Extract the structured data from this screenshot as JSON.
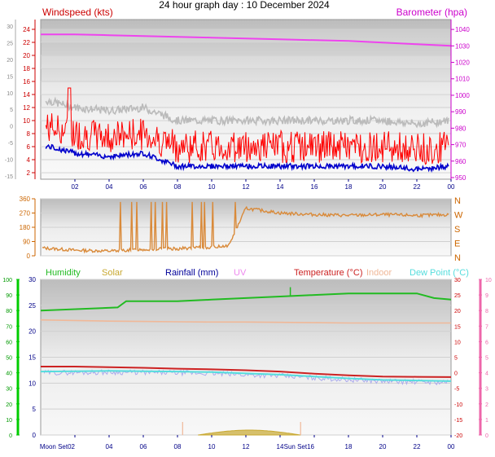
{
  "title": "24 hour graph day : 10 December 2024",
  "colors": {
    "wind": "#ff0000",
    "wind_avg": "#0000cc",
    "gust_band": "#bbbbbb",
    "barometer": "#ee44ee",
    "direction": "#d98a3a",
    "humidity": "#22bb22",
    "solar": "#c8a830",
    "rainfall": "#000099",
    "uv": "#ee88ee",
    "temperature": "#cc2222",
    "indoor": "#f0b898",
    "dew_point": "#55dddd",
    "dew_light": "#aaaaee"
  },
  "chart_data": [
    {
      "type": "line",
      "panel": "wind",
      "ylabel": "Windspeed (kts)",
      "y2label": "Barometer (hpa)",
      "x_ticks": [
        "02",
        "04",
        "06",
        "08",
        "10",
        "12",
        "14",
        "16",
        "18",
        "20",
        "22",
        "00"
      ],
      "y_ticks": [
        "2",
        "4",
        "6",
        "8",
        "10",
        "12",
        "14",
        "16",
        "18",
        "20",
        "22",
        "24"
      ],
      "y_ticks_outer": [
        "-15",
        "-10",
        "-5",
        "0",
        "5",
        "10",
        "15",
        "20",
        "25",
        "30"
      ],
      "y2_ticks": [
        "950",
        "960",
        "970",
        "980",
        "990",
        "1000",
        "1010",
        "1020",
        "1030",
        "1040"
      ],
      "ylim": [
        1,
        25.5
      ],
      "y2lim": [
        949,
        1046
      ],
      "series": [
        {
          "name": "Windspeed",
          "x": [
            0.5,
            2,
            4,
            6,
            8,
            10,
            12,
            14,
            16,
            18,
            20,
            22,
            24
          ],
          "values": [
            6,
            5,
            4.5,
            5,
            3,
            3,
            3,
            3,
            3,
            3,
            3,
            2.5,
            3
          ]
        },
        {
          "name": "Barometer",
          "x": [
            0,
            2,
            4,
            6,
            8,
            10,
            12,
            14,
            16,
            18,
            20,
            22,
            24
          ],
          "values": [
            1037,
            1037,
            1036.5,
            1036,
            1035.5,
            1035,
            1034.5,
            1034,
            1033.5,
            1033,
            1032,
            1031,
            1030
          ]
        }
      ]
    },
    {
      "type": "line",
      "panel": "direction",
      "y_ticks": [
        "0",
        "90",
        "180",
        "270",
        "360"
      ],
      "compass_labels": [
        "N",
        "E",
        "S",
        "W",
        "N"
      ],
      "ylim": [
        0,
        360
      ],
      "series": [
        {
          "x": [
            0,
            2,
            4,
            6,
            8,
            10,
            11,
            12,
            14,
            16,
            18,
            20,
            22,
            24
          ],
          "values": [
            50,
            35,
            30,
            40,
            45,
            55,
            65,
            300,
            270,
            260,
            255,
            260,
            255,
            260
          ]
        }
      ]
    },
    {
      "type": "line",
      "panel": "temperature",
      "legend": [
        "Humidity",
        "Solar",
        "Rainfall (mm)",
        "UV",
        "Temperature (°C)",
        "Indoor",
        "Dew Point (°C)"
      ],
      "x_ticks": [
        "Moon Set02",
        "04",
        "06",
        "08",
        "10",
        "12",
        "14",
        "Sun Set16",
        "18",
        "20",
        "22",
        "00"
      ],
      "y_ticks": [
        "0",
        "5",
        "10",
        "15",
        "20",
        "25",
        "30"
      ],
      "y_ticks_humidity": [
        "0",
        "10",
        "20",
        "30",
        "40",
        "50",
        "60",
        "70",
        "80",
        "90",
        "100"
      ],
      "y_ticks_uv": [
        "0",
        "1",
        "2",
        "3",
        "4",
        "5",
        "6",
        "7",
        "8",
        "9",
        "10"
      ],
      "y2_ticks": [
        "-20",
        "-15",
        "-10",
        "-5",
        "0",
        "5",
        "10",
        "15",
        "20",
        "25",
        "30"
      ],
      "ylim": [
        0,
        30
      ],
      "y2lim": [
        -20,
        30
      ],
      "series": [
        {
          "name": "Humidity",
          "x": [
            0,
            4.5,
            5,
            6,
            8,
            10,
            12,
            14,
            16,
            18,
            20,
            22,
            23,
            24
          ],
          "values": [
            80,
            82,
            86,
            86,
            86,
            87,
            88,
            89,
            90,
            91,
            91,
            91,
            88,
            87
          ]
        },
        {
          "name": "Temperature",
          "x": [
            0,
            2,
            4,
            6,
            8,
            10,
            12,
            14,
            16,
            18,
            20,
            22,
            24
          ],
          "values": [
            2,
            2,
            1.8,
            1.6,
            1.3,
            1.1,
            0.8,
            0.4,
            -0.3,
            -0.8,
            -1.2,
            -1.3,
            -1.4
          ]
        },
        {
          "name": "Dew Point",
          "x": [
            0,
            2,
            4,
            6,
            8,
            10,
            12,
            14,
            16,
            18,
            20,
            22,
            24
          ],
          "values": [
            0.4,
            0.5,
            0.6,
            0.5,
            0.4,
            0.2,
            -0.2,
            -0.6,
            -1.2,
            -1.8,
            -2.3,
            -2.5,
            -2.7
          ]
        },
        {
          "name": "Indoor",
          "x": [
            0,
            2,
            4,
            6,
            8,
            10,
            12,
            14,
            16,
            18,
            20,
            22,
            24
          ],
          "values": [
            17,
            16.8,
            16.6,
            16.5,
            16.4,
            16.3,
            16.3,
            16.2,
            16.1,
            16,
            16,
            16,
            16
          ]
        }
      ]
    }
  ]
}
